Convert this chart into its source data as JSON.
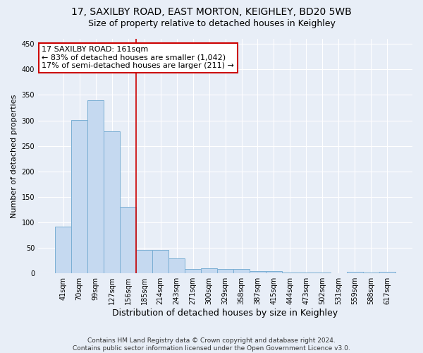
{
  "title": "17, SAXILBY ROAD, EAST MORTON, KEIGHLEY, BD20 5WB",
  "subtitle": "Size of property relative to detached houses in Keighley",
  "xlabel": "Distribution of detached houses by size in Keighley",
  "ylabel": "Number of detached properties",
  "categories": [
    "41sqm",
    "70sqm",
    "99sqm",
    "127sqm",
    "156sqm",
    "185sqm",
    "214sqm",
    "243sqm",
    "271sqm",
    "300sqm",
    "329sqm",
    "358sqm",
    "387sqm",
    "415sqm",
    "444sqm",
    "473sqm",
    "502sqm",
    "531sqm",
    "559sqm",
    "588sqm",
    "617sqm"
  ],
  "values": [
    91,
    301,
    340,
    278,
    131,
    46,
    46,
    30,
    9,
    10,
    8,
    8,
    5,
    5,
    2,
    2,
    1,
    0,
    3,
    1,
    3
  ],
  "bar_color": "#c5d9f0",
  "bar_edge_color": "#7bafd4",
  "annotation_line1": "17 SAXILBY ROAD: 161sqm",
  "annotation_line2": "← 83% of detached houses are smaller (1,042)",
  "annotation_line3": "17% of semi-detached houses are larger (211) →",
  "annotation_box_facecolor": "#ffffff",
  "annotation_box_edgecolor": "#cc0000",
  "vline_color": "#cc0000",
  "ylim": [
    0,
    460
  ],
  "yticks": [
    0,
    50,
    100,
    150,
    200,
    250,
    300,
    350,
    400,
    450
  ],
  "footer_line1": "Contains HM Land Registry data © Crown copyright and database right 2024.",
  "footer_line2": "Contains public sector information licensed under the Open Government Licence v3.0.",
  "background_color": "#e8eef7",
  "grid_color": "#ffffff",
  "title_fontsize": 10,
  "subtitle_fontsize": 9,
  "xlabel_fontsize": 9,
  "ylabel_fontsize": 8,
  "tick_fontsize": 7,
  "annotation_fontsize": 8,
  "footer_fontsize": 6.5
}
